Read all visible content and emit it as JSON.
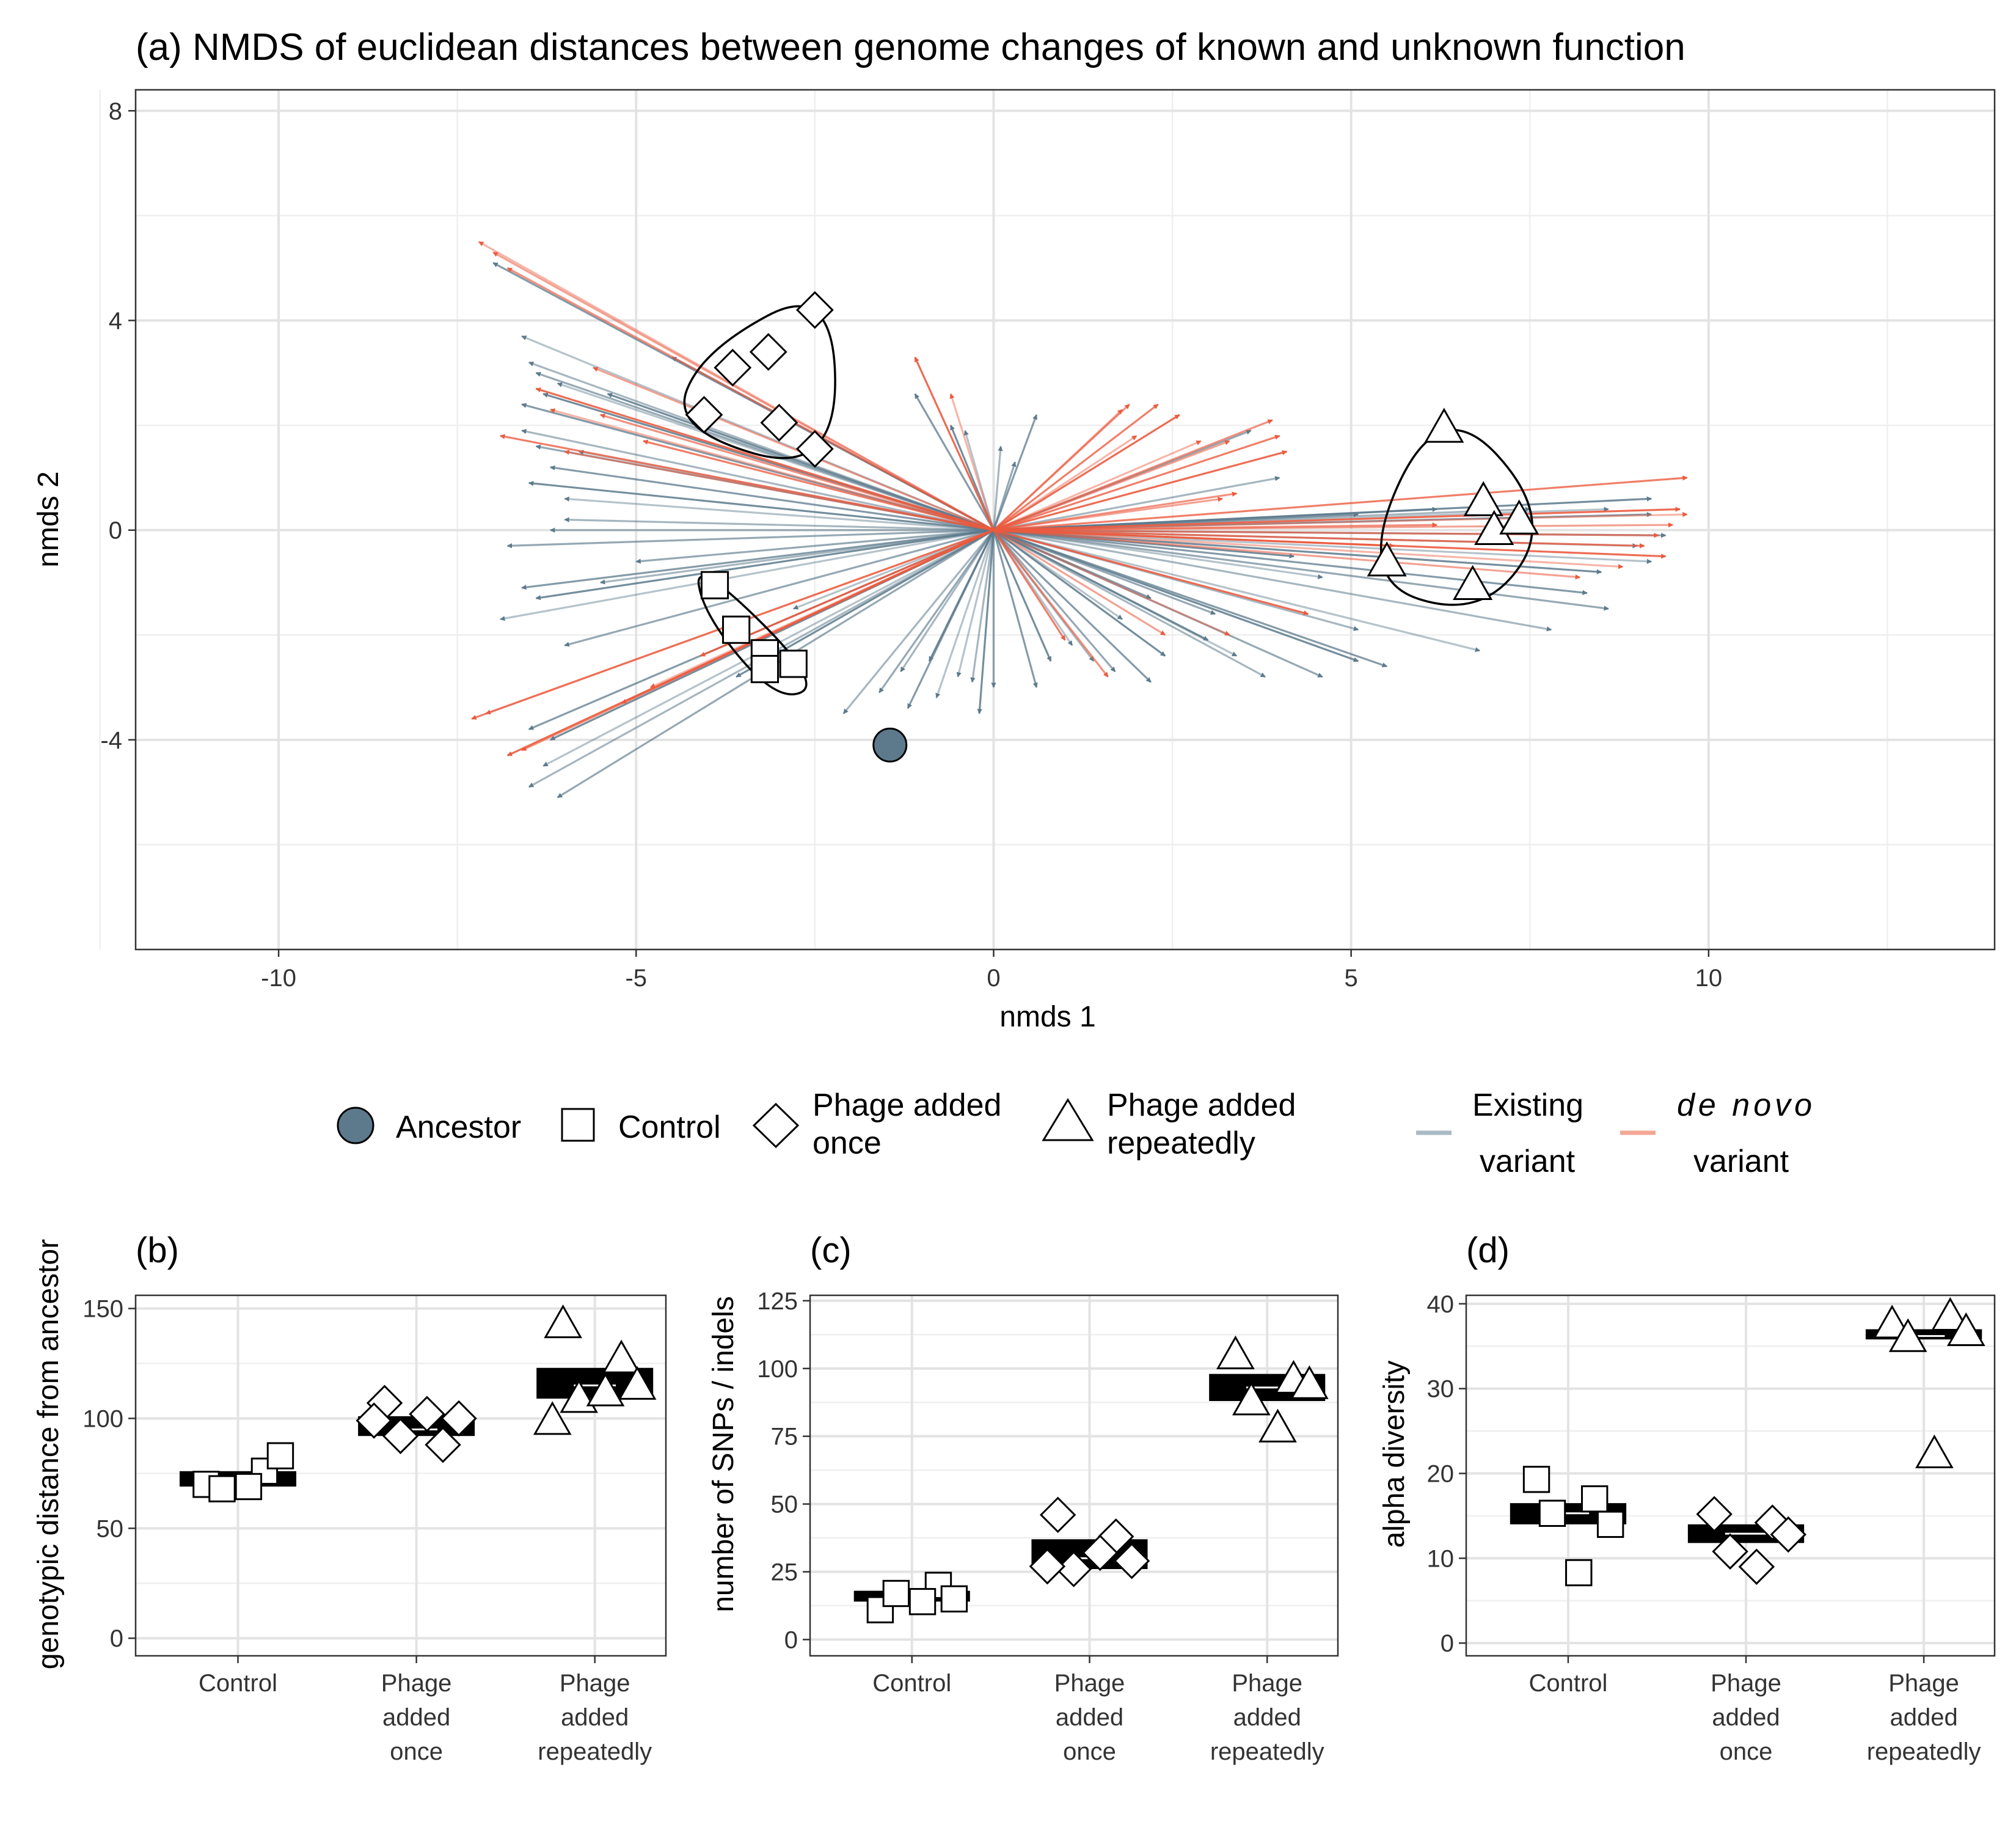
{
  "colors": {
    "existing": "#5c7a8c",
    "existing_legend": "#a9bac4",
    "denovo": "#ec5a3e",
    "denovo_legend": "#f3a795",
    "ancestor_fill": "#5c7a8c"
  },
  "legend": {
    "ancestor": "Ancestor",
    "control": "Control",
    "once_l1": "Phage added",
    "once_l2": "once",
    "rep_l1": "Phage added",
    "rep_l2": "repeatedly",
    "existing_l1": "Existing",
    "existing_l2": "variant",
    "denovo_l1": "de novo",
    "denovo_l2": "variant"
  },
  "chart_data": [
    {
      "type": "scatter",
      "panel": "(a)",
      "title": "(a) NMDS of euclidean distances between genome changes of known and unknown function",
      "xlabel": "nmds 1",
      "ylabel": "nmds 2",
      "xlim": [
        -12,
        14
      ],
      "ylim": [
        -8,
        8.4
      ],
      "xticks": [
        -10,
        -5,
        0,
        5,
        10
      ],
      "yticks": [
        -4,
        0,
        4,
        8
      ],
      "grid": true,
      "points": [
        {
          "group": "Ancestor",
          "x": -1.45,
          "y": -4.1
        },
        {
          "group": "Control",
          "x": -3.9,
          "y": -1.05
        },
        {
          "group": "Control",
          "x": -3.6,
          "y": -1.9
        },
        {
          "group": "Control",
          "x": -3.2,
          "y": -2.35
        },
        {
          "group": "Control",
          "x": -3.2,
          "y": -2.65
        },
        {
          "group": "Control",
          "x": -2.8,
          "y": -2.55
        },
        {
          "group": "Phage added once",
          "x": -2.5,
          "y": 4.2
        },
        {
          "group": "Phage added once",
          "x": -3.15,
          "y": 3.4
        },
        {
          "group": "Phage added once",
          "x": -3.65,
          "y": 3.1
        },
        {
          "group": "Phage added once",
          "x": -4.05,
          "y": 2.2
        },
        {
          "group": "Phage added once",
          "x": -3.0,
          "y": 2.05
        },
        {
          "group": "Phage added once",
          "x": -2.5,
          "y": 1.55
        },
        {
          "group": "Phage added repeatedly",
          "x": 6.3,
          "y": 1.95
        },
        {
          "group": "Phage added repeatedly",
          "x": 6.85,
          "y": 0.55
        },
        {
          "group": "Phage added repeatedly",
          "x": 7.0,
          "y": 0.0
        },
        {
          "group": "Phage added repeatedly",
          "x": 7.35,
          "y": 0.2
        },
        {
          "group": "Phage added repeatedly",
          "x": 5.5,
          "y": -0.6
        },
        {
          "group": "Phage added repeatedly",
          "x": 6.7,
          "y": -1.05
        }
      ],
      "variant_vectors": {
        "existing": [
          [
            -6.6,
            3.7
          ],
          [
            -6.5,
            3.2
          ],
          [
            -6.4,
            3.0
          ],
          [
            -6.6,
            2.4
          ],
          [
            -6.3,
            2.6
          ],
          [
            -6.1,
            2.8
          ],
          [
            -6.6,
            1.9
          ],
          [
            -6.4,
            1.6
          ],
          [
            -6.2,
            1.2
          ],
          [
            -6.5,
            0.9
          ],
          [
            -6.0,
            0.6
          ],
          [
            -6.2,
            0.0
          ],
          [
            -6.8,
            -0.3
          ],
          [
            -6.6,
            -1.1
          ],
          [
            -6.4,
            -1.3
          ],
          [
            -6.9,
            -1.7
          ],
          [
            -5.5,
            -1.0
          ],
          [
            -6.0,
            -2.2
          ],
          [
            -6.5,
            -3.8
          ],
          [
            -6.2,
            -4.0
          ],
          [
            -6.3,
            -4.5
          ],
          [
            -6.5,
            -4.9
          ],
          [
            -6.1,
            -5.1
          ],
          [
            -7.0,
            5.1
          ],
          [
            -5.4,
            2.6
          ],
          [
            -5.8,
            1.5
          ],
          [
            -6.0,
            0.2
          ],
          [
            -5.0,
            -0.6
          ],
          [
            -4.5,
            3.3
          ],
          [
            -3.6,
            -2.8
          ],
          [
            -2.8,
            -1.5
          ],
          [
            -2.1,
            -3.5
          ],
          [
            -1.6,
            -3.1
          ],
          [
            -1.2,
            -3.4
          ],
          [
            -0.9,
            -2.5
          ],
          [
            -0.5,
            -2.8
          ],
          [
            -0.3,
            -2.9
          ],
          [
            0.0,
            -3.0
          ],
          [
            -1.1,
            2.6
          ],
          [
            -0.6,
            2.0
          ],
          [
            -0.4,
            1.9
          ],
          [
            0.1,
            1.6
          ],
          [
            0.3,
            1.3
          ],
          [
            0.6,
            2.2
          ],
          [
            0.8,
            -2.5
          ],
          [
            1.1,
            -2.2
          ],
          [
            1.4,
            -2.5
          ],
          [
            1.7,
            -2.7
          ],
          [
            2.2,
            -2.9
          ],
          [
            2.4,
            -2.4
          ],
          [
            3.4,
            -2.4
          ],
          [
            3.8,
            -2.8
          ],
          [
            4.6,
            -2.8
          ],
          [
            5.5,
            -2.6
          ],
          [
            5.1,
            -2.5
          ],
          [
            6.8,
            -2.3
          ],
          [
            7.8,
            -1.9
          ],
          [
            8.6,
            -1.5
          ],
          [
            8.3,
            -1.2
          ],
          [
            8.5,
            -0.8
          ],
          [
            9.2,
            -0.6
          ],
          [
            9.0,
            -0.3
          ],
          [
            9.4,
            -0.1
          ],
          [
            9.2,
            0.3
          ],
          [
            9.2,
            0.6
          ],
          [
            8.6,
            0.4
          ],
          [
            7.5,
            0.4
          ],
          [
            6.2,
            0.4
          ],
          [
            5.1,
            0.3
          ],
          [
            4.2,
            -0.5
          ],
          [
            4.6,
            -0.9
          ],
          [
            5.1,
            -1.9
          ],
          [
            3.1,
            -1.6
          ],
          [
            2.2,
            -1.3
          ],
          [
            3.0,
            -2.1
          ],
          [
            1.8,
            -1.7
          ],
          [
            4.0,
            1.0
          ],
          [
            3.6,
            1.9
          ],
          [
            0.6,
            -3.0
          ],
          [
            -0.2,
            -3.5
          ],
          [
            -0.8,
            -3.2
          ],
          [
            -1.3,
            -2.7
          ]
        ],
        "denovo": [
          [
            -7.2,
            5.5
          ],
          [
            -7.0,
            5.3
          ],
          [
            -6.8,
            5.0
          ],
          [
            -6.9,
            1.8
          ],
          [
            -6.4,
            2.7
          ],
          [
            -6.2,
            2.3
          ],
          [
            -6.0,
            1.5
          ],
          [
            -6.6,
            -4.2
          ],
          [
            -7.3,
            -3.6
          ],
          [
            -6.8,
            -4.3
          ],
          [
            -7.1,
            -3.5
          ],
          [
            -5.6,
            3.1
          ],
          [
            -5.5,
            2.2
          ],
          [
            -4.9,
            1.7
          ],
          [
            -1.1,
            3.3
          ],
          [
            -0.6,
            2.6
          ],
          [
            1.8,
            2.3
          ],
          [
            1.9,
            2.4
          ],
          [
            2.3,
            2.4
          ],
          [
            2.6,
            2.2
          ],
          [
            2.9,
            1.7
          ],
          [
            3.3,
            1.7
          ],
          [
            3.9,
            2.1
          ],
          [
            4.0,
            1.8
          ],
          [
            4.1,
            1.5
          ],
          [
            2.0,
            1.8
          ],
          [
            3.2,
            0.6
          ],
          [
            3.4,
            0.7
          ],
          [
            9.7,
            1.0
          ],
          [
            9.6,
            0.4
          ],
          [
            9.7,
            0.3
          ],
          [
            9.5,
            0.1
          ],
          [
            9.3,
            -0.1
          ],
          [
            9.1,
            -0.3
          ],
          [
            9.4,
            -0.5
          ],
          [
            8.8,
            -0.7
          ],
          [
            8.2,
            -0.9
          ],
          [
            6.2,
            0.1
          ],
          [
            5.6,
            -0.3
          ],
          [
            4.4,
            -1.6
          ],
          [
            3.3,
            -2.0
          ],
          [
            2.4,
            -2.0
          ],
          [
            1.6,
            -2.8
          ],
          [
            1.0,
            -2.1
          ],
          [
            -4.1,
            -2.4
          ],
          [
            -4.8,
            -3.0
          ],
          [
            -5.2,
            -3.3
          ]
        ]
      },
      "hulls": [
        "Control",
        "Phage added once",
        "Phage added repeatedly"
      ]
    },
    {
      "type": "box",
      "panel": "(b)",
      "title": "(b)",
      "ylabel": "genotypic distance from ancestor",
      "categories": [
        "Control",
        "Phage\nadded\nonce",
        "Phage\nadded\nrepeatedly"
      ],
      "ylim": [
        -8,
        156
      ],
      "yticks": [
        0,
        50,
        100,
        150
      ],
      "boxes": [
        {
          "q1": 69,
          "median": 72,
          "q3": 76
        },
        {
          "q1": 92,
          "median": 95,
          "q3": 101
        },
        {
          "q1": 109,
          "median": 115,
          "q3": 123
        }
      ],
      "points": [
        [
          70,
          76,
          83,
          68,
          69
        ],
        [
          107,
          88,
          100,
          92,
          102,
          99
        ],
        [
          143,
          127,
          115,
          109,
          112,
          99
        ]
      ]
    },
    {
      "type": "box",
      "panel": "(c)",
      "title": "(c)",
      "ylabel": "number of SNPs / indels",
      "categories": [
        "Control",
        "Phage\nadded\nonce",
        "Phage\nadded\nrepeatedly"
      ],
      "ylim": [
        -6,
        127
      ],
      "yticks": [
        0,
        25,
        50,
        75,
        100,
        125
      ],
      "boxes": [
        {
          "q1": 14,
          "median": 16,
          "q3": 18
        },
        {
          "q1": 26,
          "median": 30,
          "q3": 37
        },
        {
          "q1": 88,
          "median": 93,
          "q3": 98
        }
      ],
      "points": [
        [
          11,
          20,
          15,
          17,
          14
        ],
        [
          46,
          38,
          29,
          26,
          32,
          27
        ],
        [
          105,
          96,
          94,
          88,
          78
        ]
      ]
    },
    {
      "type": "box",
      "panel": "(d)",
      "title": "(d)",
      "ylabel": "alpha diversity",
      "categories": [
        "Control",
        "Phage\nadded\nonce",
        "Phage\nadded\nrepeatedly"
      ],
      "ylim": [
        -1.5,
        41
      ],
      "yticks": [
        0,
        10,
        20,
        30,
        40
      ],
      "boxes": [
        {
          "q1": 14,
          "median": 15.3,
          "q3": 16.5
        },
        {
          "q1": 11.8,
          "median": 12.9,
          "q3": 14
        },
        {
          "q1": 35.8,
          "median": 36.2,
          "q3": 37
        }
      ],
      "points": [
        [
          19.3,
          17,
          14,
          15.3,
          8.3
        ],
        [
          15.2,
          14.2,
          12.8,
          10.8,
          9
        ],
        [
          37.6,
          38.5,
          36.7,
          36,
          22.3
        ]
      ]
    }
  ]
}
